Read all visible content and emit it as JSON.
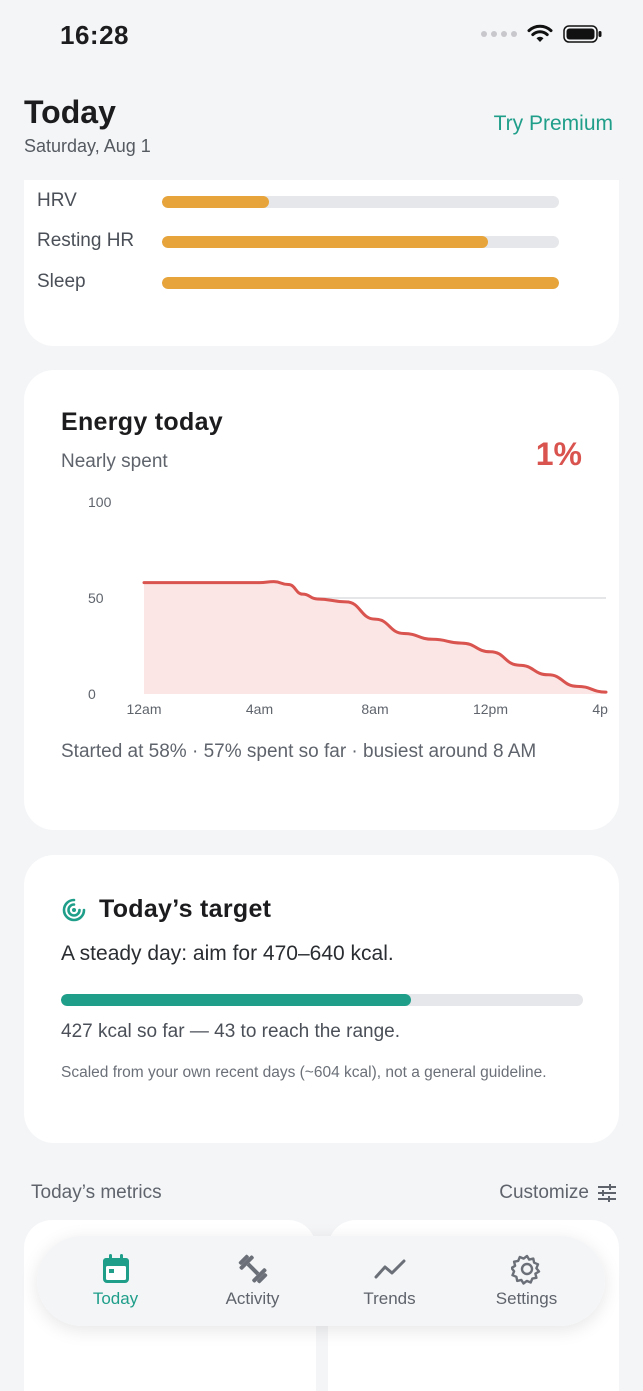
{
  "status_bar": {
    "time": "16:28"
  },
  "header": {
    "title": "Today",
    "date": "Saturday, Aug 1",
    "premium_label": "Try Premium"
  },
  "recovery": {
    "bars": [
      {
        "label": "HRV",
        "fraction": 0.27
      },
      {
        "label": "Resting HR",
        "fraction": 0.82
      },
      {
        "label": "Sleep",
        "fraction": 1.0
      }
    ]
  },
  "energy": {
    "title": "Energy today",
    "subtitle": "Nearly spent",
    "percent": "1%",
    "summary": "Started at 58% · 57% spent so far · busiest around 8 AM"
  },
  "chart_data": {
    "type": "area",
    "title": "",
    "xlabel": "",
    "ylabel": "",
    "ylim": [
      0,
      100
    ],
    "yticks": [
      "0",
      "50",
      "100"
    ],
    "xticks": [
      {
        "label": "12am",
        "hour": 0
      },
      {
        "label": "4am",
        "hour": 4
      },
      {
        "label": "8am",
        "hour": 8
      },
      {
        "label": "12pm",
        "hour": 12
      },
      {
        "label": "4pm",
        "hour": 16
      }
    ],
    "x": [
      0,
      1,
      2,
      3,
      4,
      4.5,
      5,
      5.5,
      6,
      7,
      8,
      9,
      10,
      11,
      12,
      13,
      14,
      15,
      16
    ],
    "y": [
      58,
      58,
      58,
      58,
      58,
      58.5,
      57,
      52,
      49.5,
      48,
      39,
      31.5,
      28.5,
      26.5,
      22,
      15,
      10,
      4,
      1
    ],
    "reference_line": 50,
    "colors": {
      "line": "#d9534f",
      "fill": "#fbe6e5"
    }
  },
  "target": {
    "title": "Today’s target",
    "description": "A steady day: aim for 470–640 kcal.",
    "progress_text": "427 kcal so far — 43 to reach the range.",
    "progress_fraction": 0.67,
    "note": "Scaled from your own recent days (~604 kcal), not a general guideline."
  },
  "metrics": {
    "section_label": "Today’s metrics",
    "customize_label": "Customize"
  },
  "tabs": [
    {
      "label": "Today",
      "icon": "calendar-icon",
      "active": true
    },
    {
      "label": "Activity",
      "icon": "dumbbell-icon",
      "active": false
    },
    {
      "label": "Trends",
      "icon": "trend-icon",
      "active": false
    },
    {
      "label": "Settings",
      "icon": "gear-icon",
      "active": false
    }
  ],
  "colors": {
    "accent": "#1f9e8a",
    "warning": "#d9534f",
    "bar": "#e6a43b"
  }
}
